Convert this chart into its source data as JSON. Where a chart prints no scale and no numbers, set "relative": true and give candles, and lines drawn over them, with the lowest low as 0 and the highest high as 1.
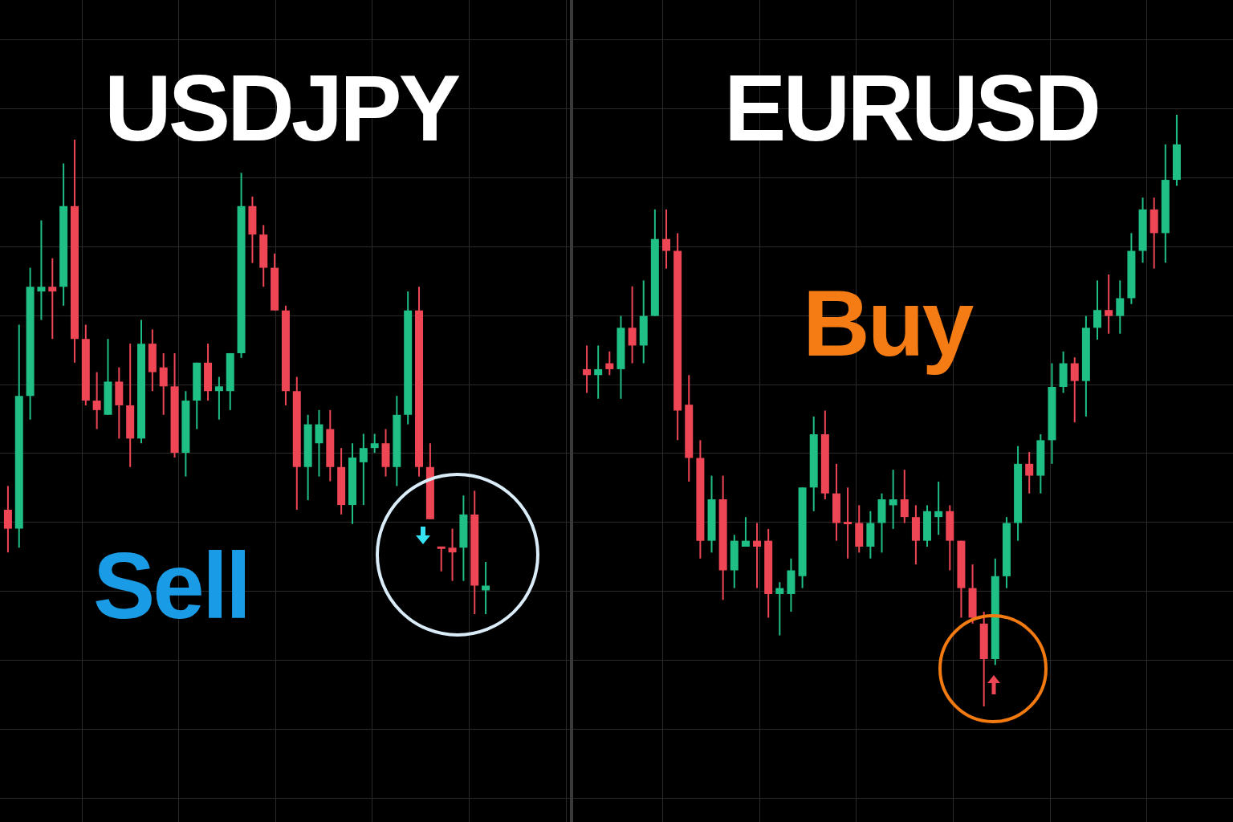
{
  "chart_data": [
    {
      "type": "candlestick",
      "title": "USDJPY",
      "relative": true,
      "grid": true,
      "annotations": [
        "Sell"
      ],
      "categories": [
        null,
        null,
        null,
        null,
        null,
        null,
        null,
        null,
        null,
        null,
        null,
        null,
        null,
        null,
        null,
        null,
        null,
        null,
        null,
        null,
        null,
        null,
        null,
        null,
        null,
        null,
        null,
        null,
        null,
        null,
        null,
        null,
        null,
        null,
        null,
        null,
        null,
        null,
        null,
        null,
        null,
        null,
        null,
        null
      ],
      "ohlc": [
        [
          0.22,
          0.27,
          0.13,
          0.18
        ],
        [
          0.18,
          0.61,
          0.14,
          0.46
        ],
        [
          0.46,
          0.73,
          0.41,
          0.69
        ],
        [
          0.68,
          0.83,
          0.62,
          0.69
        ],
        [
          0.69,
          0.75,
          0.58,
          0.68
        ],
        [
          0.69,
          0.95,
          0.65,
          0.86
        ],
        [
          0.86,
          1,
          0.53,
          0.58
        ],
        [
          0.58,
          0.61,
          0.44,
          0.45
        ],
        [
          0.45,
          0.51,
          0.39,
          0.43
        ],
        [
          0.42,
          0.58,
          0.42,
          0.49
        ],
        [
          0.49,
          0.52,
          0.37,
          0.44
        ],
        [
          0.44,
          0.57,
          0.31,
          0.37
        ],
        [
          0.37,
          0.62,
          0.36,
          0.57
        ],
        [
          0.57,
          0.6,
          0.47,
          0.51
        ],
        [
          0.52,
          0.55,
          0.42,
          0.48
        ],
        [
          0.48,
          0.55,
          0.33,
          0.34
        ],
        [
          0.34,
          0.47,
          0.29,
          0.45
        ],
        [
          0.45,
          0.53,
          0.39,
          0.53
        ],
        [
          0.53,
          0.57,
          0.45,
          0.47
        ],
        [
          0.47,
          0.5,
          0.41,
          0.48
        ],
        [
          0.47,
          0.55,
          0.43,
          0.55
        ],
        [
          0.55,
          0.93,
          0.54,
          0.86
        ],
        [
          0.86,
          0.88,
          0.74,
          0.8
        ],
        [
          0.8,
          0.82,
          0.69,
          0.73
        ],
        [
          0.73,
          0.76,
          0.64,
          0.64
        ],
        [
          0.64,
          0.65,
          0.44,
          0.47
        ],
        [
          0.47,
          0.5,
          0.22,
          0.31
        ],
        [
          0.31,
          0.42,
          0.24,
          0.4
        ],
        [
          0.36,
          0.43,
          0.29,
          0.4
        ],
        [
          0.39,
          0.43,
          0.28,
          0.31
        ],
        [
          0.31,
          0.35,
          0.21,
          0.23
        ],
        [
          0.23,
          0.36,
          0.19,
          0.33
        ],
        [
          0.32,
          0.38,
          0.23,
          0.35
        ],
        [
          0.35,
          0.38,
          0.34,
          0.36
        ],
        [
          0.36,
          0.39,
          0.29,
          0.31
        ],
        [
          0.31,
          0.46,
          0.27,
          0.42
        ],
        [
          0.42,
          0.68,
          0.4,
          0.64
        ],
        [
          0.64,
          0.69,
          0.29,
          0.31
        ],
        [
          0.31,
          0.36,
          0.2,
          0.2
        ],
        [
          0.14,
          0.14,
          0.09,
          0.14
        ],
        [
          0.14,
          0.18,
          0.07,
          0.13
        ],
        [
          0.14,
          0.25,
          0.07,
          0.21
        ],
        [
          0.21,
          0.26,
          0,
          0.06
        ],
        [
          0.05,
          0.11,
          0,
          0.06
        ]
      ],
      "colors": [
        "#ef4655",
        "#1fbf86",
        "#1fbf86",
        "#1fbf86",
        "#ef4655",
        "#1fbf86",
        "#ef4655",
        "#ef4655",
        "#ef4655",
        "#1fbf86",
        "#ef4655",
        "#ef4655",
        "#1fbf86",
        "#ef4655",
        "#ef4655",
        "#ef4655",
        "#1fbf86",
        "#1fbf86",
        "#ef4655",
        "#1fbf86",
        "#1fbf86",
        "#1fbf86",
        "#ef4655",
        "#ef4655",
        "#ef4655",
        "#ef4655",
        "#ef4655",
        "#1fbf86",
        "#1fbf86",
        "#ef4655",
        "#ef4655",
        "#1fbf86",
        "#1fbf86",
        "#1fbf86",
        "#ef4655",
        "#1fbf86",
        "#1fbf86",
        "#ef4655",
        "#ef4655",
        "#ef4655",
        "#ef4655",
        "#1fbf86",
        "#ef4655",
        "#1fbf86"
      ]
    },
    {
      "type": "candlestick",
      "title": "EURUSD",
      "relative": true,
      "grid": true,
      "annotations": [
        "Buy"
      ],
      "categories": [
        null,
        null,
        null,
        null,
        null,
        null,
        null,
        null,
        null,
        null,
        null,
        null,
        null,
        null,
        null,
        null,
        null,
        null,
        null,
        null,
        null,
        null,
        null,
        null,
        null,
        null,
        null,
        null,
        null,
        null,
        null,
        null,
        null,
        null,
        null,
        null,
        null,
        null,
        null,
        null,
        null,
        null,
        null,
        null,
        null,
        null,
        null,
        null,
        null,
        null,
        null,
        null,
        null
      ],
      "ohlc": [
        [
          0.57,
          0.61,
          0.53,
          0.56
        ],
        [
          0.56,
          0.61,
          0.52,
          0.57
        ],
        [
          0.58,
          0.6,
          0.56,
          0.57
        ],
        [
          0.57,
          0.66,
          0.52,
          0.64
        ],
        [
          0.64,
          0.71,
          0.58,
          0.61
        ],
        [
          0.61,
          0.72,
          0.58,
          0.66
        ],
        [
          0.66,
          0.84,
          0.66,
          0.79
        ],
        [
          0.79,
          0.84,
          0.74,
          0.77
        ],
        [
          0.77,
          0.8,
          0.45,
          0.5
        ],
        [
          0.51,
          0.56,
          0.38,
          0.42
        ],
        [
          0.42,
          0.45,
          0.25,
          0.28
        ],
        [
          0.28,
          0.39,
          0.26,
          0.35
        ],
        [
          0.35,
          0.39,
          0.18,
          0.23
        ],
        [
          0.23,
          0.29,
          0.2,
          0.28
        ],
        [
          0.27,
          0.32,
          0.27,
          0.28
        ],
        [
          0.28,
          0.31,
          0.2,
          0.27
        ],
        [
          0.28,
          0.3,
          0.15,
          0.19
        ],
        [
          0.19,
          0.21,
          0.12,
          0.2
        ],
        [
          0.19,
          0.25,
          0.16,
          0.23
        ],
        [
          0.22,
          0.37,
          0.2,
          0.37
        ],
        [
          0.37,
          0.49,
          0.33,
          0.46
        ],
        [
          0.46,
          0.5,
          0.35,
          0.36
        ],
        [
          0.36,
          0.41,
          0.28,
          0.31
        ],
        [
          0.31,
          0.37,
          0.25,
          0.31
        ],
        [
          0.31,
          0.34,
          0.26,
          0.27
        ],
        [
          0.27,
          0.33,
          0.25,
          0.31
        ],
        [
          0.31,
          0.36,
          0.26,
          0.35
        ],
        [
          0.34,
          0.4,
          0.3,
          0.35
        ],
        [
          0.35,
          0.4,
          0.31,
          0.32
        ],
        [
          0.32,
          0.34,
          0.24,
          0.28
        ],
        [
          0.28,
          0.34,
          0.27,
          0.33
        ],
        [
          0.32,
          0.38,
          0.29,
          0.33
        ],
        [
          0.33,
          0.34,
          0.23,
          0.28
        ],
        [
          0.28,
          0.28,
          0.15,
          0.2
        ],
        [
          0.2,
          0.24,
          0.14,
          0.15
        ],
        [
          0.14,
          0.16,
          0,
          0.08
        ],
        [
          0.08,
          0.25,
          0.07,
          0.22
        ],
        [
          0.22,
          0.32,
          0.2,
          0.31
        ],
        [
          0.31,
          0.44,
          0.28,
          0.41
        ],
        [
          0.41,
          0.43,
          0.36,
          0.39
        ],
        [
          0.39,
          0.46,
          0.36,
          0.45
        ],
        [
          0.45,
          0.58,
          0.41,
          0.54
        ],
        [
          0.54,
          0.6,
          0.53,
          0.58
        ],
        [
          0.58,
          0.59,
          0.48,
          0.55
        ],
        [
          0.55,
          0.66,
          0.49,
          0.64
        ],
        [
          0.64,
          0.72,
          0.62,
          0.67
        ],
        [
          0.67,
          0.73,
          0.63,
          0.66
        ],
        [
          0.66,
          0.72,
          0.63,
          0.69
        ],
        [
          0.69,
          0.8,
          0.68,
          0.77
        ],
        [
          0.77,
          0.86,
          0.75,
          0.84
        ],
        [
          0.84,
          0.86,
          0.74,
          0.8
        ],
        [
          0.8,
          0.95,
          0.75,
          0.89
        ],
        [
          0.89,
          1,
          0.88,
          0.95
        ]
      ],
      "colors": [
        "#ef4655",
        "#1fbf86",
        "#ef4655",
        "#1fbf86",
        "#ef4655",
        "#1fbf86",
        "#1fbf86",
        "#ef4655",
        "#ef4655",
        "#ef4655",
        "#ef4655",
        "#1fbf86",
        "#ef4655",
        "#1fbf86",
        "#1fbf86",
        "#ef4655",
        "#ef4655",
        "#1fbf86",
        "#1fbf86",
        "#1fbf86",
        "#1fbf86",
        "#ef4655",
        "#ef4655",
        "#ef4655",
        "#ef4655",
        "#1fbf86",
        "#1fbf86",
        "#1fbf86",
        "#ef4655",
        "#ef4655",
        "#1fbf86",
        "#1fbf86",
        "#ef4655",
        "#ef4655",
        "#ef4655",
        "#ef4655",
        "#1fbf86",
        "#1fbf86",
        "#1fbf86",
        "#ef4655",
        "#1fbf86",
        "#1fbf86",
        "#1fbf86",
        "#ef4655",
        "#1fbf86",
        "#1fbf86",
        "#ef4655",
        "#1fbf86",
        "#1fbf86",
        "#1fbf86",
        "#ef4655",
        "#1fbf86",
        "#1fbf86"
      ]
    }
  ]
}
